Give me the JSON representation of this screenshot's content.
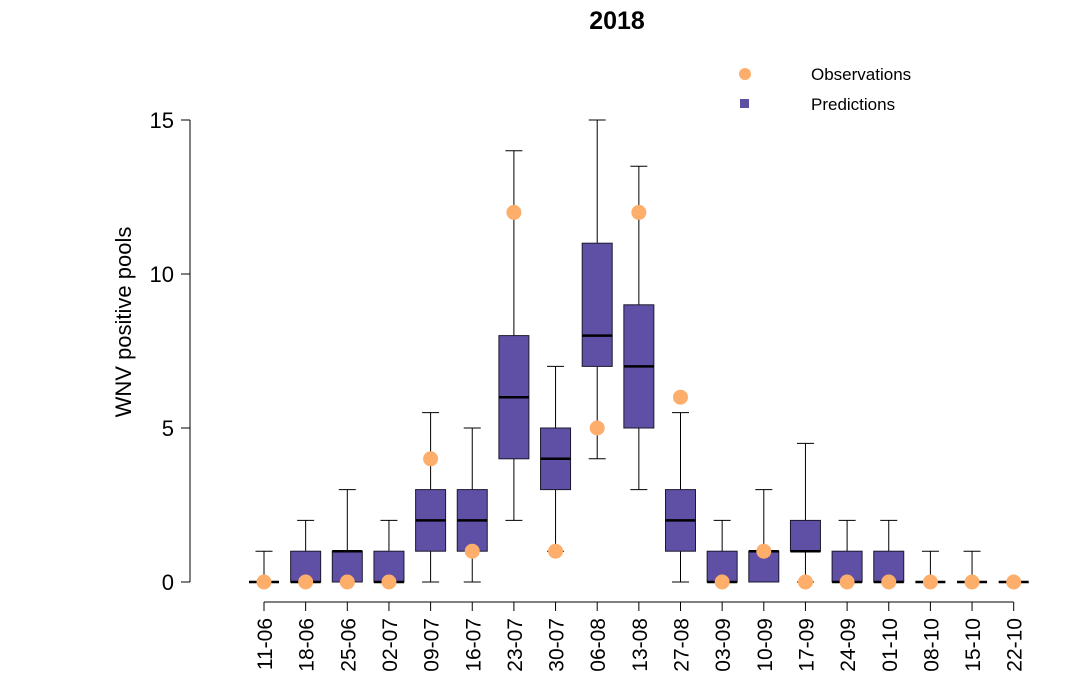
{
  "chart_data": {
    "type": "box",
    "title": "2018",
    "xlabel": "",
    "ylabel": "WNV positive pools",
    "ylim": [
      0,
      15
    ],
    "yticks": [
      0,
      5,
      10,
      15
    ],
    "grid": false,
    "legend": {
      "position": "top-right",
      "entries": [
        {
          "label": "Observations",
          "marker": "circle",
          "color": "#FDAE6B"
        },
        {
          "label": "Predictions",
          "marker": "square",
          "color": "#5E4FA2"
        }
      ]
    },
    "colors": {
      "box_fill": "#6050A5",
      "box_stroke": "#1a1a2e",
      "observation": "#FDAE6B",
      "whisker": "#000000"
    },
    "categories": [
      "11-06",
      "18-06",
      "25-06",
      "02-07",
      "09-07",
      "16-07",
      "23-07",
      "30-07",
      "06-08",
      "13-08",
      "27-08",
      "03-09",
      "10-09",
      "17-09",
      "24-09",
      "01-10",
      "08-10",
      "15-10",
      "22-10"
    ],
    "series": [
      {
        "name": "Predictions",
        "boxes": [
          {
            "whisker_low": 0,
            "q1": 0,
            "median": 0,
            "q3": 0,
            "whisker_high": 1
          },
          {
            "whisker_low": 0,
            "q1": 0,
            "median": 0,
            "q3": 1,
            "whisker_high": 2
          },
          {
            "whisker_low": 0,
            "q1": 0,
            "median": 1,
            "q3": 1,
            "whisker_high": 3
          },
          {
            "whisker_low": 0,
            "q1": 0,
            "median": 0,
            "q3": 1,
            "whisker_high": 2
          },
          {
            "whisker_low": 0,
            "q1": 1,
            "median": 2,
            "q3": 3,
            "whisker_high": 5.5
          },
          {
            "whisker_low": 0,
            "q1": 1,
            "median": 2,
            "q3": 3,
            "whisker_high": 5
          },
          {
            "whisker_low": 2,
            "q1": 4,
            "median": 6,
            "q3": 8,
            "whisker_high": 14
          },
          {
            "whisker_low": 1,
            "q1": 3,
            "median": 4,
            "q3": 5,
            "whisker_high": 7
          },
          {
            "whisker_low": 4,
            "q1": 7,
            "median": 8,
            "q3": 11,
            "whisker_high": 15
          },
          {
            "whisker_low": 3,
            "q1": 5,
            "median": 7,
            "q3": 9,
            "whisker_high": 13.5
          },
          {
            "whisker_low": 0,
            "q1": 1,
            "median": 2,
            "q3": 3,
            "whisker_high": 5.5
          },
          {
            "whisker_low": 0,
            "q1": 0,
            "median": 0,
            "q3": 1,
            "whisker_high": 2
          },
          {
            "whisker_low": 0,
            "q1": 0,
            "median": 1,
            "q3": 1,
            "whisker_high": 3
          },
          {
            "whisker_low": 0,
            "q1": 1,
            "median": 1,
            "q3": 2,
            "whisker_high": 4.5
          },
          {
            "whisker_low": 0,
            "q1": 0,
            "median": 0,
            "q3": 1,
            "whisker_high": 2
          },
          {
            "whisker_low": 0,
            "q1": 0,
            "median": 0,
            "q3": 1,
            "whisker_high": 2
          },
          {
            "whisker_low": 0,
            "q1": 0,
            "median": 0,
            "q3": 0,
            "whisker_high": 1
          },
          {
            "whisker_low": 0,
            "q1": 0,
            "median": 0,
            "q3": 0,
            "whisker_high": 1
          },
          {
            "whisker_low": 0,
            "q1": 0,
            "median": 0,
            "q3": 0,
            "whisker_high": 0
          }
        ]
      },
      {
        "name": "Observations",
        "values": [
          0,
          0,
          0,
          0,
          4,
          1,
          12,
          1,
          5,
          12,
          6,
          0,
          1,
          0,
          0,
          0,
          0,
          0,
          0
        ]
      }
    ]
  }
}
